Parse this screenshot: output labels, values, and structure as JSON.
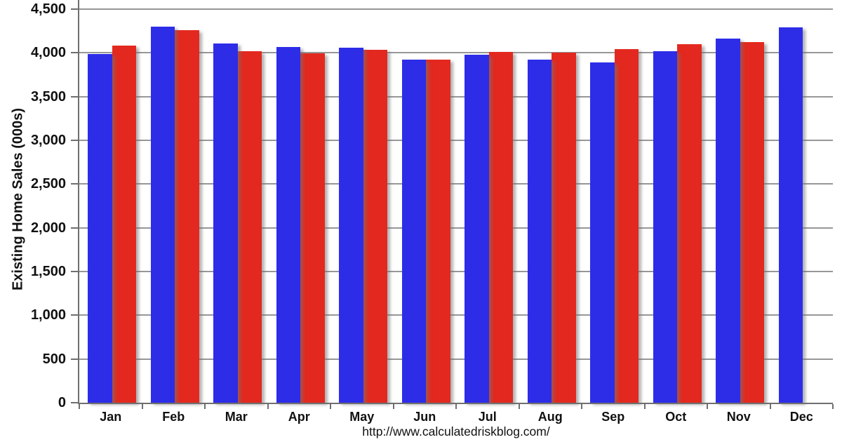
{
  "chart_data": {
    "type": "bar",
    "ylabel": "Existing Home Sales (000s)",
    "xlabel": "",
    "categories": [
      "Jan",
      "Feb",
      "Mar",
      "Apr",
      "May",
      "Jun",
      "Jul",
      "Aug",
      "Sep",
      "Oct",
      "Nov",
      "Dec"
    ],
    "series": [
      {
        "name": "blue",
        "color": "#2d2de8",
        "values": [
          3990,
          4300,
          4110,
          4070,
          4055,
          3920,
          3975,
          3925,
          3890,
          4020,
          4165,
          4290
        ]
      },
      {
        "name": "red",
        "color": "#e3291f",
        "values": [
          4085,
          4260,
          4015,
          3995,
          4035,
          3920,
          4010,
          4000,
          4040,
          4100,
          4120,
          null
        ]
      }
    ],
    "ylim": [
      0,
      4500
    ],
    "yticks": [
      {
        "label": "0",
        "value": 0
      },
      {
        "label": "500",
        "value": 500
      },
      {
        "label": "1,000",
        "value": 1000
      },
      {
        "label": "1,500",
        "value": 1500
      },
      {
        "label": "2,000",
        "value": 2000
      },
      {
        "label": "2,500",
        "value": 2500
      },
      {
        "label": "3,000",
        "value": 3000
      },
      {
        "label": "3,500",
        "value": 3500
      },
      {
        "label": "4,000",
        "value": 4000
      },
      {
        "label": "4,500",
        "value": 4500
      }
    ],
    "grid": true,
    "legend_position": "none"
  },
  "caption": {
    "url": "http://www.calculatedriskblog.com/"
  },
  "colors": {
    "bar_blue": "#2d2de8",
    "bar_red": "#e3291f",
    "gridline": "#979797",
    "axis": "#6f6f6f",
    "text": "#111111",
    "background": "#ffffff"
  }
}
